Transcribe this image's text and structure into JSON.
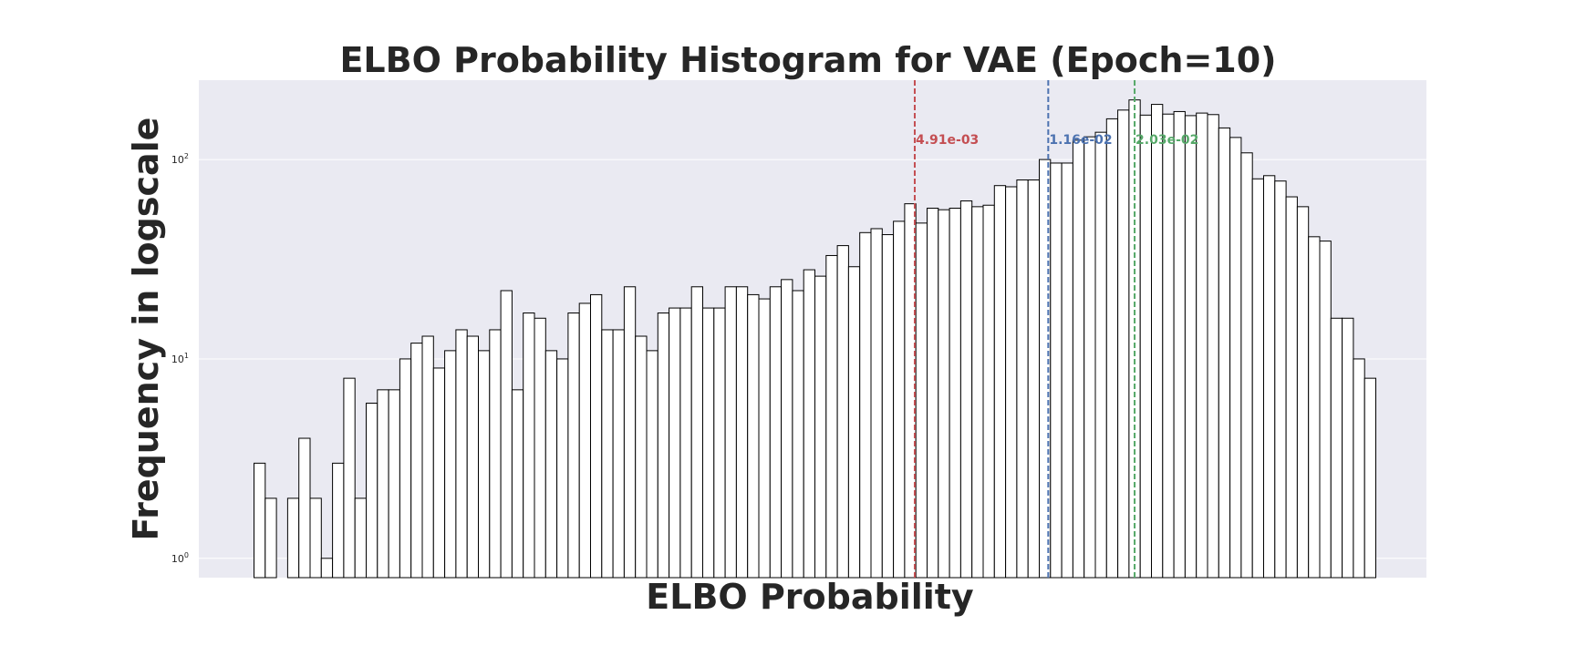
{
  "chart_data": {
    "type": "bar",
    "title": "ELBO Probability Histogram for VAE (Epoch=10)",
    "xlabel": "ELBO Probability",
    "ylabel": "Frequency in logscale",
    "y_scale": "log",
    "ylim": [
      0.8,
      250
    ],
    "y_ticks": [
      {
        "value": 1,
        "label_base": "10",
        "label_exp": "0"
      },
      {
        "value": 10,
        "label_base": "10",
        "label_exp": "1"
      },
      {
        "value": 100,
        "label_base": "10",
        "label_exp": "2"
      }
    ],
    "x_ticks_visible": false,
    "grid": "horizontal",
    "background_color": "#eaeaf2",
    "bar_fill": "#ffffff",
    "bar_edge": "#000000",
    "bin_count": 100,
    "counts": [
      3,
      2,
      0,
      2,
      4,
      2,
      1,
      3,
      8,
      2,
      6,
      7,
      7,
      10,
      12,
      13,
      9,
      11,
      14,
      13,
      11,
      14,
      22,
      7,
      17,
      16,
      11,
      10,
      17,
      19,
      21,
      14,
      14,
      23,
      13,
      11,
      17,
      18,
      18,
      23,
      18,
      18,
      23,
      23,
      21,
      20,
      23,
      25,
      22,
      28,
      26,
      33,
      37,
      29,
      43,
      45,
      42,
      49,
      60,
      48,
      57,
      56,
      57,
      62,
      58,
      59,
      74,
      73,
      79,
      79,
      100,
      96,
      96,
      125,
      130,
      137,
      160,
      177,
      199,
      167,
      189,
      169,
      174,
      166,
      171,
      168,
      144,
      129,
      108,
      80,
      83,
      78,
      65,
      58,
      41,
      39,
      16,
      16,
      10,
      8
    ],
    "vertical_lines": [
      {
        "label": "4.91e-03",
        "color": "#c44e52",
        "bin_position": 58.9
      },
      {
        "label": "1.16e-02",
        "color": "#4c72b0",
        "bin_position": 70.8
      },
      {
        "label": "2.03e-02",
        "color": "#55a868",
        "bin_position": 78.5
      }
    ]
  }
}
